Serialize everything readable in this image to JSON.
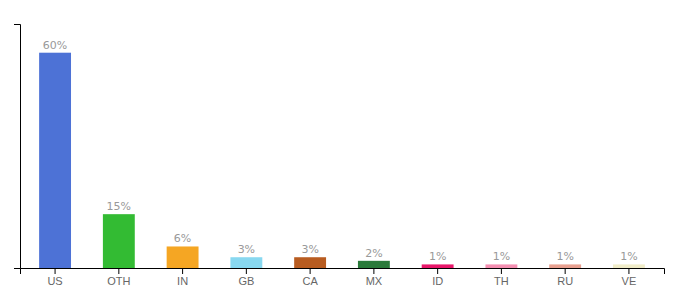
{
  "chart_data": {
    "type": "bar",
    "categories": [
      "US",
      "OTH",
      "IN",
      "GB",
      "CA",
      "MX",
      "ID",
      "TH",
      "RU",
      "VE"
    ],
    "values": [
      60,
      15,
      6,
      3,
      3,
      2,
      1,
      1,
      1,
      1
    ],
    "value_labels": [
      "60%",
      "15%",
      "6%",
      "3%",
      "3%",
      "2%",
      "1%",
      "1%",
      "1%",
      "1%"
    ],
    "data_labels": true,
    "colors": [
      "#4d72d6",
      "#33bb33",
      "#f5a623",
      "#88d8f0",
      "#b85c20",
      "#2a7a3a",
      "#e8176a",
      "#f48fb1",
      "#e8a090",
      "#f0ecc8"
    ],
    "ylim": [
      0,
      68
    ],
    "grid": false,
    "tick_labels": "x"
  }
}
